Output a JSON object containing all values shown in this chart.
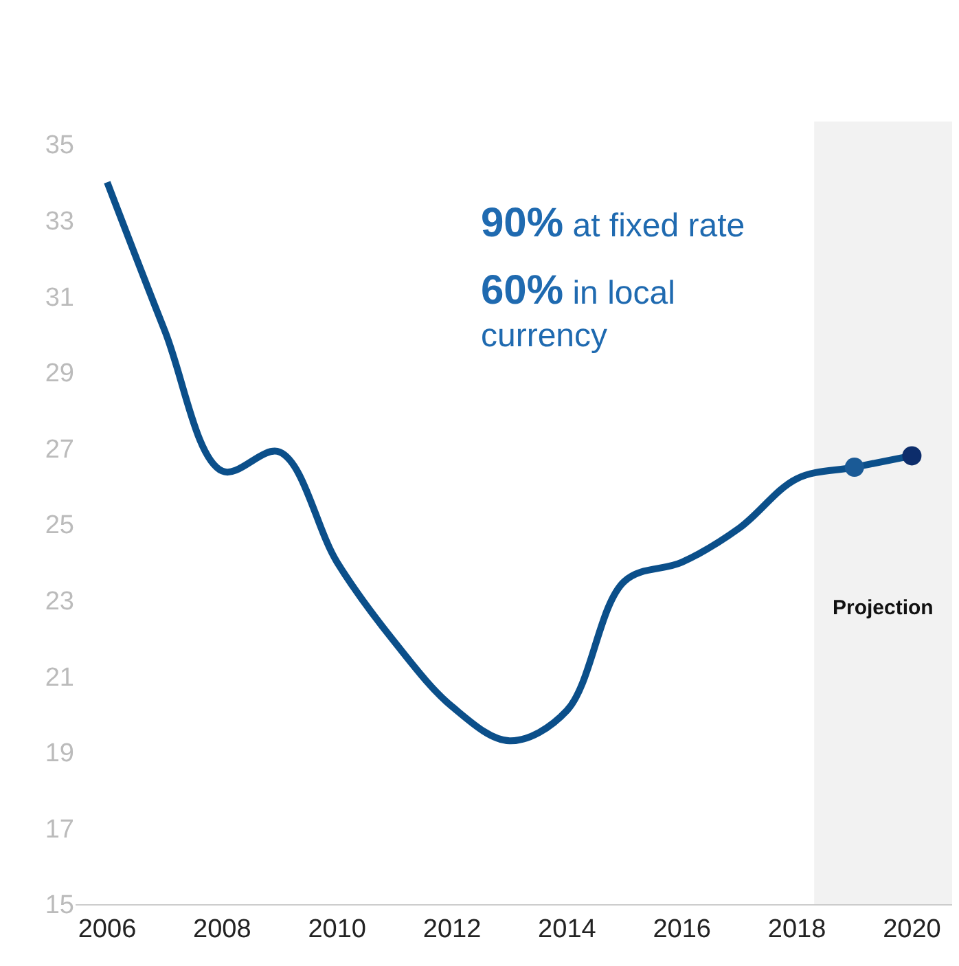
{
  "chart_data": {
    "type": "line",
    "x": [
      2006,
      2007,
      2008,
      2009,
      2010,
      2011,
      2012,
      2013,
      2014,
      2015,
      2016,
      2017,
      2018,
      2019,
      2020
    ],
    "series": [
      {
        "color": "#0b4f8a",
        "values": [
          34.0,
          30.1,
          26.4,
          26.9,
          24.0,
          21.9,
          20.2,
          19.3,
          20.1,
          23.5,
          24.0,
          24.9,
          26.2,
          26.5,
          26.8
        ]
      },
      {
        "type": "scatter",
        "x": [
          2019,
          2020
        ],
        "colors": [
          "#1a5a96",
          "#0d2d6b"
        ],
        "values": [
          26.5,
          26.8
        ]
      }
    ],
    "xlim": [
      2005.45,
      2020.7
    ],
    "ylim": [
      15,
      35
    ],
    "xticks": [
      2006,
      2008,
      2010,
      2012,
      2014,
      2016,
      2018,
      2020
    ],
    "yticks": [
      15,
      17,
      19,
      21,
      23,
      25,
      27,
      29,
      31,
      33,
      35
    ],
    "grid": false,
    "bands": [
      {
        "axis": "x",
        "from": 2018.3,
        "to": 2020.7,
        "label": "Projection",
        "color": "#f2f2f2"
      }
    ],
    "annotations": [
      "90% at fixed rate",
      "60% in local currency"
    ]
  }
}
